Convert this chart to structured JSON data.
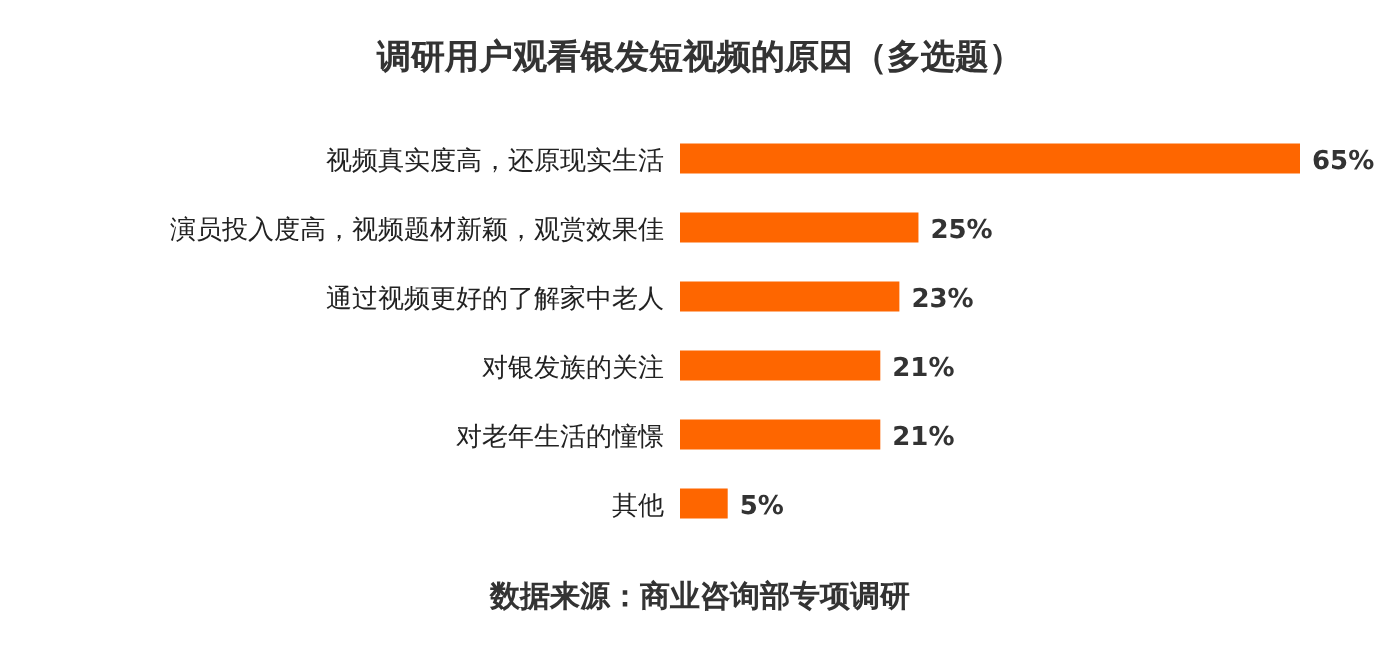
{
  "chart_data": {
    "type": "bar",
    "orientation": "horizontal",
    "title": "调研用户观看银发短视频的原因（多选题）",
    "categories": [
      "视频真实度高，还原现实生活",
      "演员投入度高，视频题材新颖，观赏效果佳",
      "通过视频更好的了解家中老人",
      "对银发族的关注",
      "对老年生活的憧憬",
      "其他"
    ],
    "values": [
      65,
      25,
      23,
      21,
      21,
      5
    ],
    "value_labels": [
      "65%",
      "25%",
      "23%",
      "21%",
      "21%",
      "5%"
    ],
    "color": "#fe6600",
    "annotations": [
      "数据来源：商业咨询部专项调研"
    ]
  }
}
